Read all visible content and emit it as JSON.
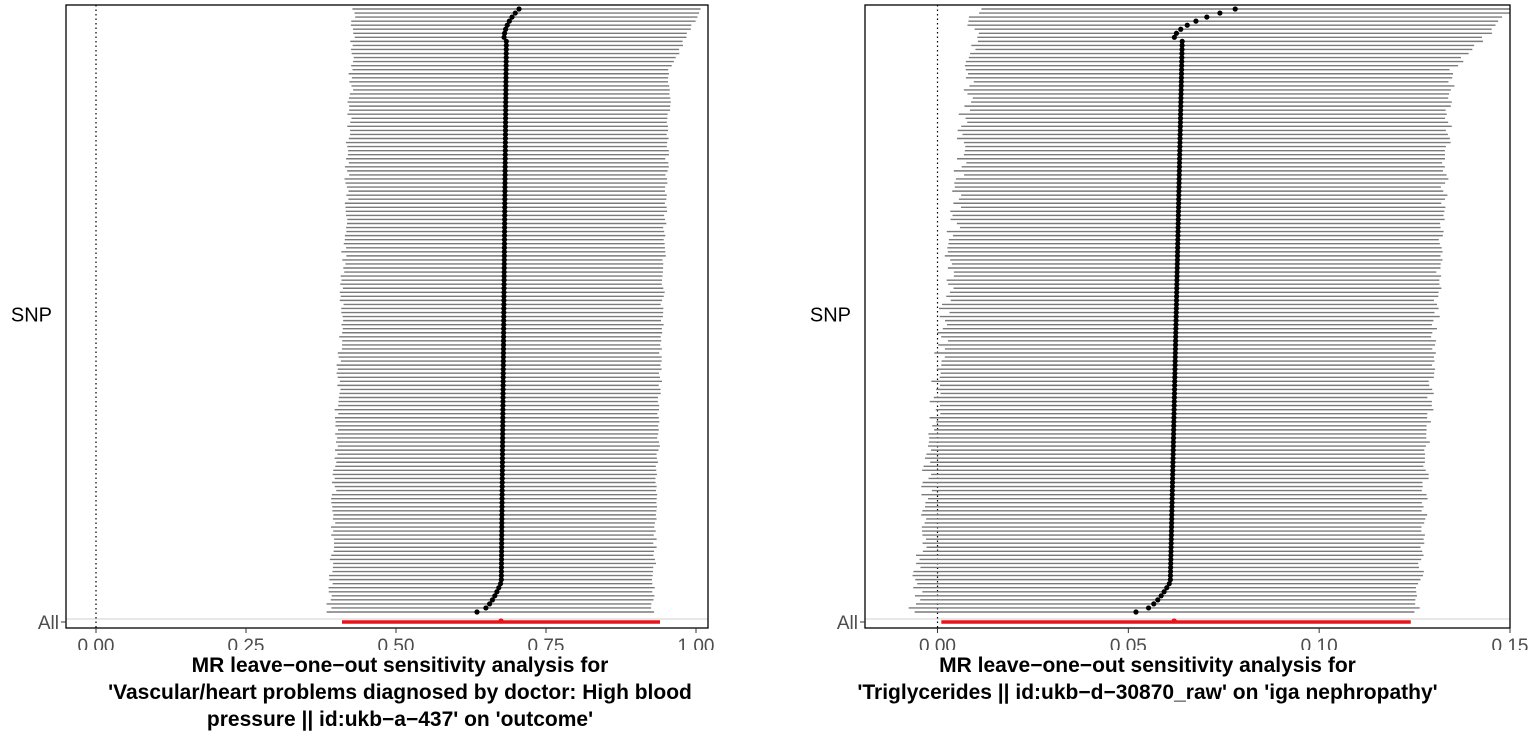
{
  "chart_data": [
    {
      "type": "forest",
      "title": "MR leave-one-out sensitivity analysis for 'Vascular/heart problems diagnosed by doctor: High blood pressure || id:ukb-a-437' on 'outcome'",
      "title_lines": [
        "MR leave−one−out sensitivity analysis for",
        "'Vascular/heart problems diagnosed by doctor: High blood",
        "pressure || id:ukb−a−437' on 'outcome'"
      ],
      "xlabel": "",
      "ylabel": "SNP",
      "ytick_bottom": "All",
      "xlim": [
        -0.05,
        1.02
      ],
      "xticks": [
        "0.00",
        "0.25",
        "0.50",
        "0.75",
        "1.00"
      ],
      "xtick_values": [
        0,
        0.25,
        0.5,
        0.75,
        1.0
      ],
      "reference_line": 0,
      "n_snps": 150,
      "snp_estimates": {
        "min": 0.635,
        "max": 0.705,
        "median": 0.68
      },
      "snp_ci_lower_range": [
        0.37,
        0.43
      ],
      "snp_ci_upper_range": [
        0.9,
        0.98
      ],
      "all": {
        "estimate": 0.675,
        "ci_lower": 0.41,
        "ci_upper": 0.94,
        "color": "#e8141c"
      }
    },
    {
      "type": "forest",
      "title": "MR leave-one-out sensitivity analysis for 'Triglycerides || id:ukb-d-30870_raw' on 'iga nephropathy'",
      "title_lines": [
        "MR leave−one−out sensitivity analysis for",
        "'Triglycerides || id:ukb−d−30870_raw' on 'iga nephropathy'"
      ],
      "xlabel": "",
      "ylabel": "SNP",
      "ytick_bottom": "All",
      "xlim": [
        -0.019,
        0.15
      ],
      "xticks": [
        "0.00",
        "0.05",
        "0.10",
        "0.15"
      ],
      "xtick_values": [
        0,
        0.05,
        0.1,
        0.15
      ],
      "reference_line": 0,
      "n_snps": 150,
      "snp_estimates": {
        "min": 0.052,
        "max": 0.078,
        "median": 0.062
      },
      "snp_ci_lower_range": [
        -0.013,
        0.01
      ],
      "snp_ci_upper_range": [
        0.117,
        0.142
      ],
      "all": {
        "estimate": 0.062,
        "ci_lower": 0.001,
        "ci_upper": 0.124,
        "color": "#e8141c"
      }
    }
  ],
  "colors": {
    "ci_line": "#7a7a7a",
    "point": "#000000",
    "all": "#e8141c",
    "axis": "#000000",
    "tick_text": "#4d4d4d"
  }
}
